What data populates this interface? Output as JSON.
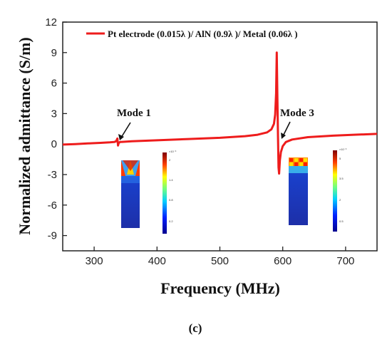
{
  "chart_data": {
    "type": "line",
    "xlabel": "Frequency (MHz)",
    "ylabel": "Normalized admittance (S/m)",
    "xlim": [
      250,
      750
    ],
    "ylim": [
      -10.5,
      12
    ],
    "xticks": [
      300,
      400,
      500,
      600,
      700
    ],
    "yticks": [
      -9,
      -6,
      -3,
      0,
      3,
      6,
      9,
      12
    ],
    "grid": false,
    "legend_position": "top-right",
    "series": [
      {
        "name": "Pt electrode (0.015λ )/ AlN (0.9λ )/ Metal (0.06λ )",
        "color": "#ee1c1c",
        "x": [
          250,
          270,
          290,
          310,
          325,
          332,
          335,
          337,
          338,
          339,
          341,
          345,
          360,
          400,
          450,
          500,
          540,
          560,
          575,
          582,
          586,
          588,
          589.5,
          590.5,
          591.5,
          592.5,
          593.3,
          594.2,
          595.5,
          597,
          600,
          605,
          615,
          640,
          680,
          720,
          750
        ],
        "y": [
          -0.05,
          0.0,
          0.06,
          0.12,
          0.17,
          0.2,
          0.28,
          0.55,
          -0.15,
          0.1,
          0.2,
          0.22,
          0.27,
          0.37,
          0.5,
          0.62,
          0.78,
          0.92,
          1.15,
          1.45,
          2.0,
          2.9,
          5.0,
          9.0,
          4.5,
          0.5,
          -2.3,
          -2.9,
          -1.6,
          -0.8,
          -0.2,
          0.2,
          0.45,
          0.68,
          0.83,
          0.93,
          1.0
        ]
      }
    ],
    "annotations": [
      {
        "text": "Mode 1",
        "x": 336,
        "y": 0.4
      },
      {
        "text": "Mode 3",
        "x": 597,
        "y": 0.8
      }
    ],
    "caption": "(c)"
  }
}
